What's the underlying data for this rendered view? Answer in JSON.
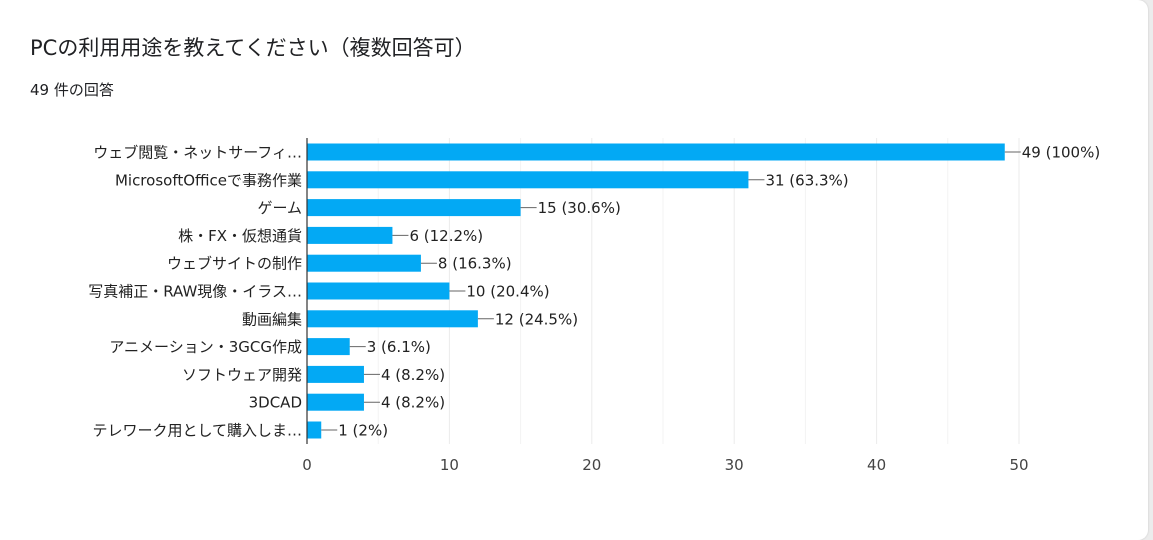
{
  "question": {
    "title": "PCの利用用途を教えてください（複数回答可）",
    "response_count": "49 件の回答"
  },
  "colors": {
    "bar": "#03a9f4",
    "grid": "#ebebeb",
    "axis": "#333333"
  },
  "chart_data": {
    "type": "bar",
    "orientation": "horizontal",
    "x_ticks": [
      0,
      10,
      20,
      30,
      40,
      50
    ],
    "categories": [
      "ウェブ閲覧・ネットサーフィ…",
      "MicrosoftOfficeで事務作業",
      "ゲーム",
      "株・FX・仮想通貨",
      "ウェブサイトの制作",
      "写真補正・RAW現像・イラス…",
      "動画編集",
      "アニメーション・3GCG作成",
      "ソフトウェア開発",
      "3DCAD",
      "テレワーク用として購入しま…"
    ],
    "values": [
      49,
      31,
      15,
      6,
      8,
      10,
      12,
      3,
      4,
      4,
      1
    ],
    "percents": [
      "100%",
      "63.3%",
      "30.6%",
      "12.2%",
      "16.3%",
      "20.4%",
      "24.5%",
      "6.1%",
      "8.2%",
      "8.2%",
      "2%"
    ]
  }
}
